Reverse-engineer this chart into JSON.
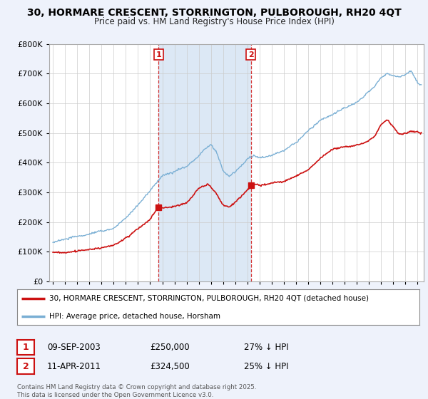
{
  "title": "30, HORMARE CRESCENT, STORRINGTON, PULBOROUGH, RH20 4QT",
  "subtitle": "Price paid vs. HM Land Registry's House Price Index (HPI)",
  "legend_red": "30, HORMARE CRESCENT, STORRINGTON, PULBOROUGH, RH20 4QT (detached house)",
  "legend_blue": "HPI: Average price, detached house, Horsham",
  "footnote": "Contains HM Land Registry data © Crown copyright and database right 2025.\nThis data is licensed under the Open Government Licence v3.0.",
  "sale1_label": "1",
  "sale1_date": "09-SEP-2003",
  "sale1_price": "£250,000",
  "sale1_hpi": "27% ↓ HPI",
  "sale2_label": "2",
  "sale2_date": "11-APR-2011",
  "sale2_price": "£324,500",
  "sale2_hpi": "25% ↓ HPI",
  "sale1_year": 2003.7,
  "sale2_year": 2011.28,
  "sale1_price_val": 250000,
  "sale2_price_val": 324500,
  "bg_color": "#eef2fb",
  "plot_bg": "#ffffff",
  "shade_color": "#dce8f5",
  "red_color": "#cc1111",
  "blue_color": "#7aafd4",
  "vline_color": "#cc1111",
  "grid_color": "#cccccc",
  "ylim_max": 800000,
  "xlim_min": 1994.7,
  "xlim_max": 2025.5
}
